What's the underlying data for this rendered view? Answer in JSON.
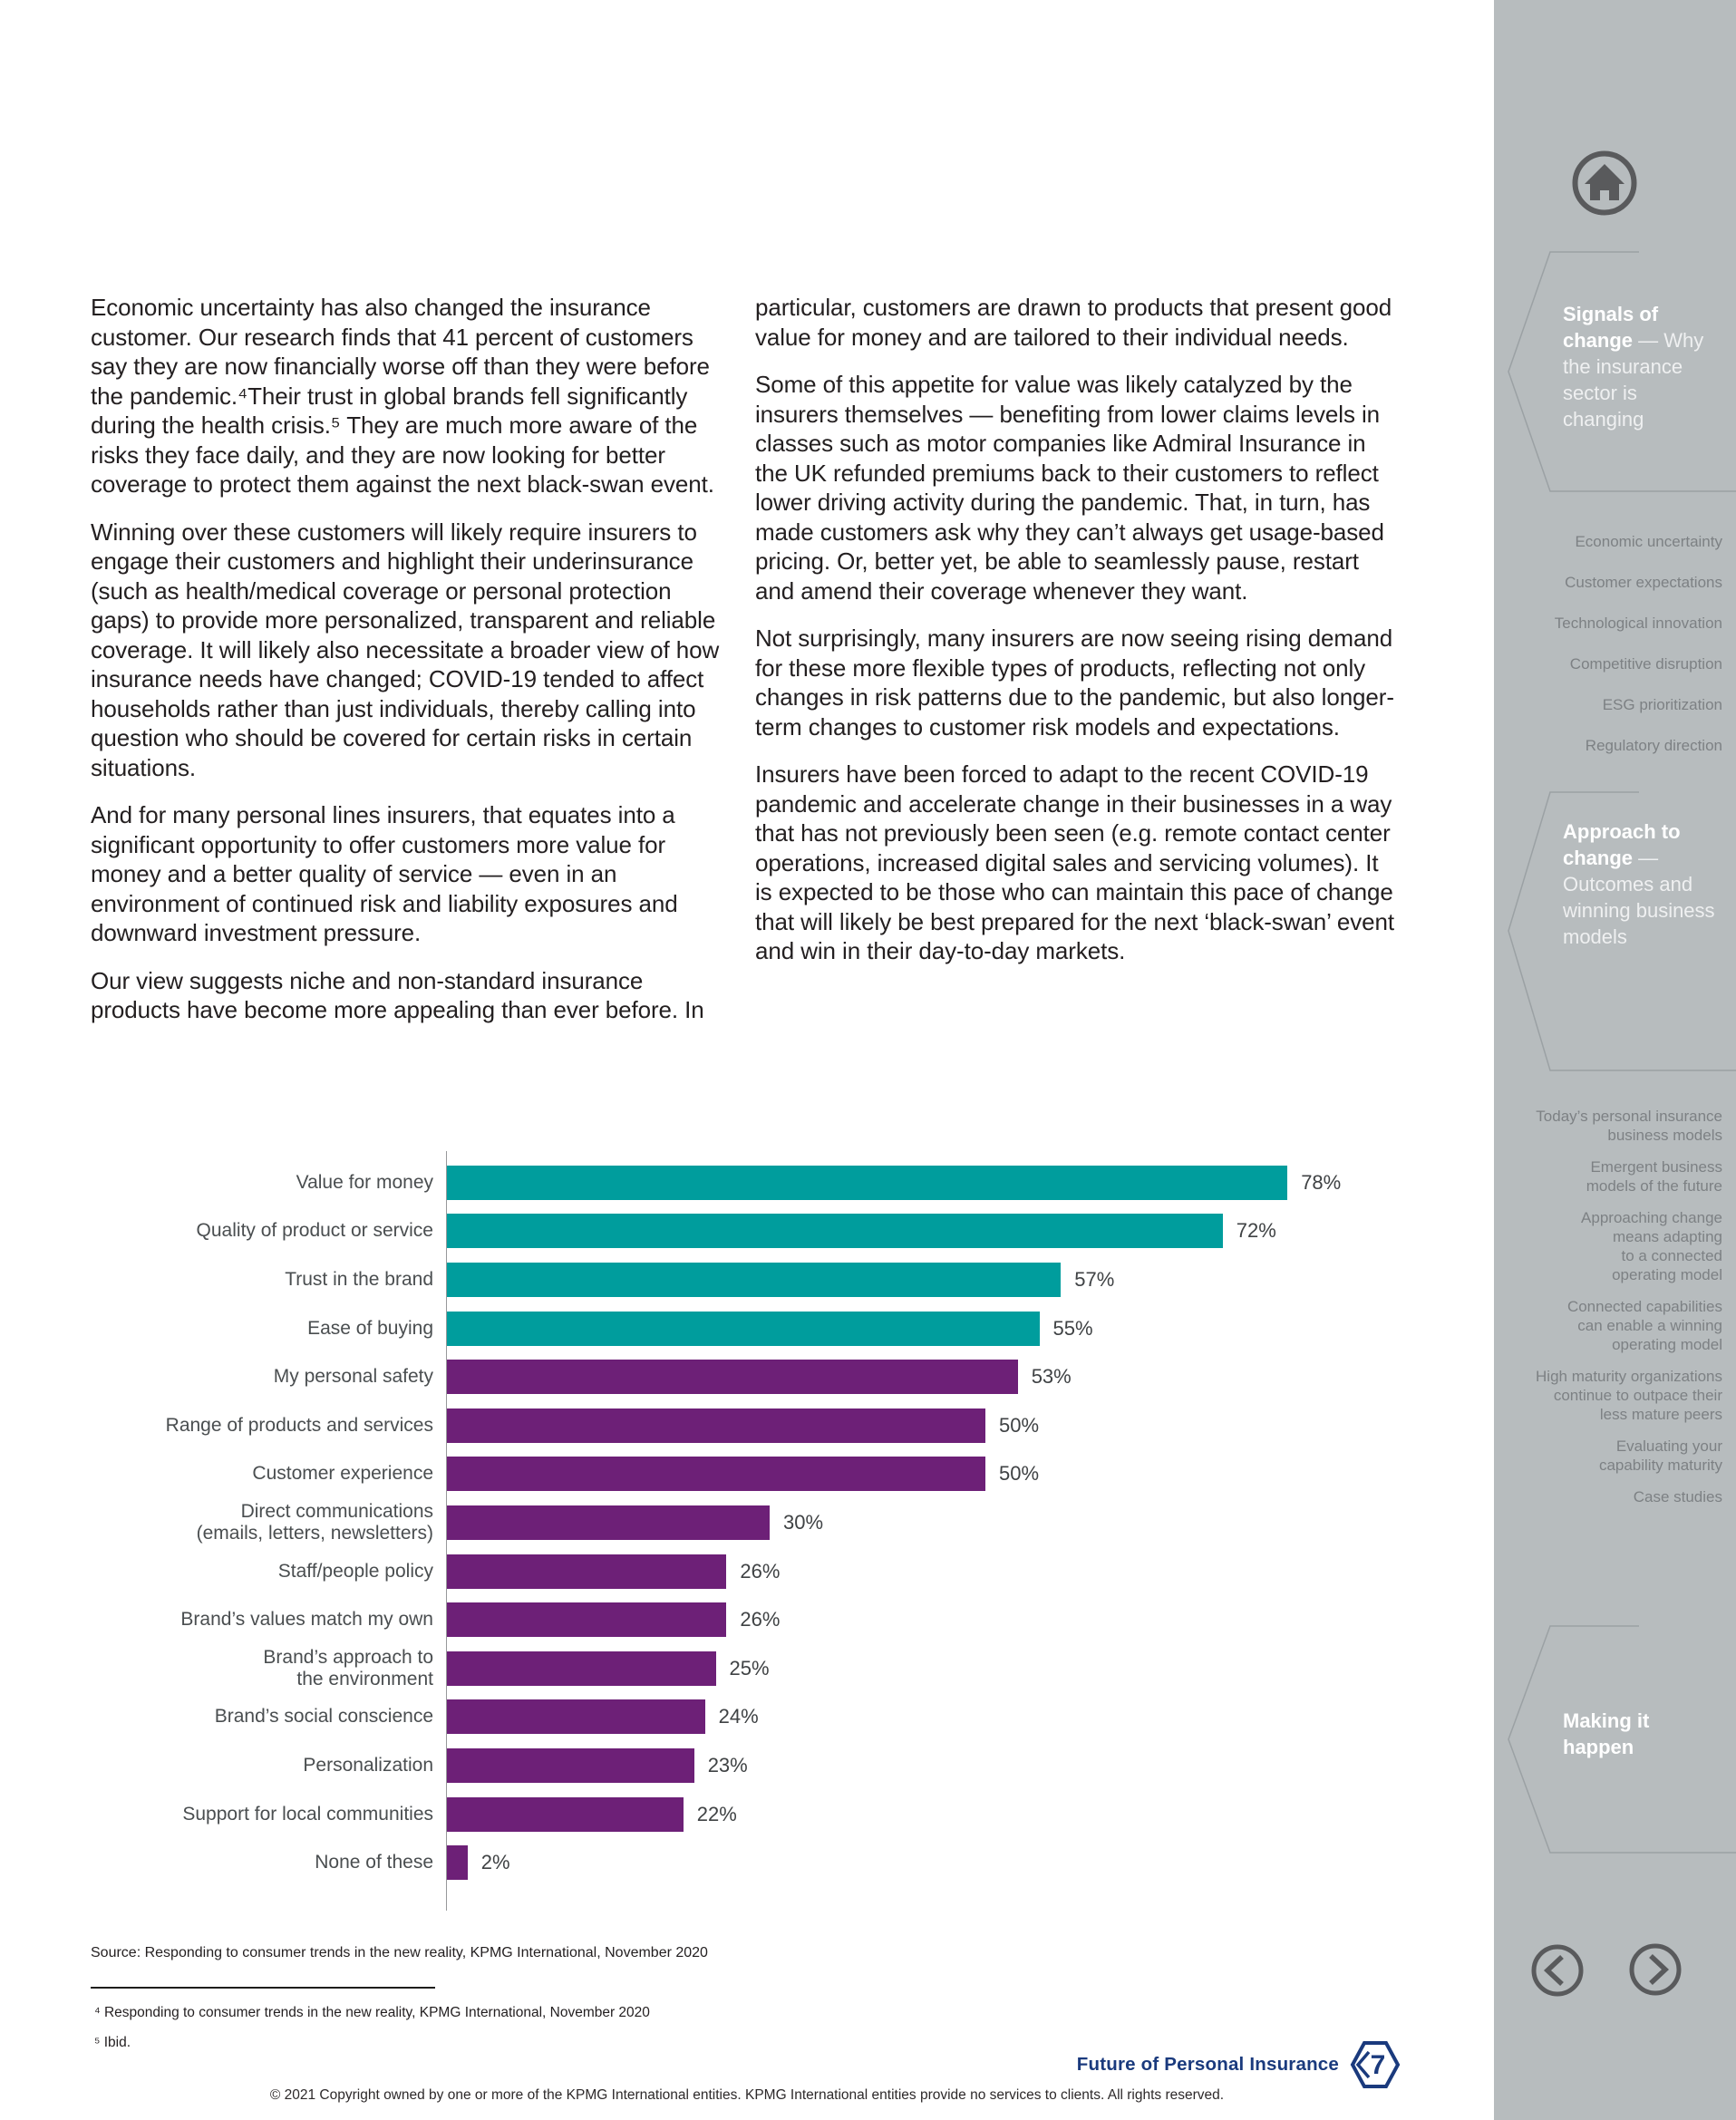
{
  "colors": {
    "teal": "#009d9d",
    "purple": "#6d2077",
    "kpmg_blue": "#1a3a7d",
    "sidebar_gray": "#b7bcbe",
    "icon_gray": "#595a5c"
  },
  "article": {
    "left_column": {
      "paragraphs": [
        "Economic uncertainty has also changed the insurance customer. Our research finds that 41 percent of customers say they are now financially worse off than they were before the pandemic.⁴Their trust in global brands fell significantly during the health crisis.⁵ They are much more aware of the risks they face daily, and they are now looking for better coverage to protect them against the next black-swan event.",
        "Winning over these customers will likely require insurers to engage their customers and highlight their underinsurance (such as health/medical coverage or personal protection gaps) to provide more personalized, transparent and reliable coverage. It will likely also necessitate a broader view of how insurance needs have changed; COVID-19 tended to affect households rather than just individuals, thereby calling into question who should be covered for certain risks in certain situations.",
        "And for many personal lines insurers, that equates into a significant opportunity to offer customers more value for money and a better quality of service — even in an environment of continued risk and liability exposures and downward investment pressure.",
        "Our view suggests niche and non-standard insurance products have become more appealing than ever before. In"
      ]
    },
    "right_column": {
      "paragraphs": [
        "particular, customers are drawn to products that present good value for money and are tailored to their individual needs.",
        "Some of this appetite for value was likely catalyzed by the insurers themselves —  benefiting from lower claims levels in classes such as motor companies like Admiral Insurance in the UK refunded premiums back to their customers to reflect lower driving activity during the pandemic. That, in turn, has made customers ask why they can’t always get usage-based pricing. Or, better yet, be able to seamlessly pause, restart and amend their coverage whenever  they want.",
        "Not surprisingly, many insurers are now seeing rising demand for these more flexible types of products, reflecting not only changes in risk patterns due to the pandemic, but also longer-term changes to customer risk models and expectations.",
        "Insurers have been forced to adapt to the recent COVID-19 pandemic and accelerate change in their businesses in a way that has not previously been seen (e.g. remote contact center operations, increased digital sales and servicing volumes). It is expected to be those who can maintain this pace of change that will likely be best prepared for the next ‘black-swan’ event and win in their day-to-day markets."
      ]
    }
  },
  "chart_data": {
    "type": "bar",
    "orientation": "horizontal",
    "xlim": [
      0,
      100
    ],
    "value_suffix": "%",
    "grid": false,
    "legend": "none",
    "colors": {
      "teal": "#009d9d",
      "purple": "#6d2077"
    },
    "categories": [
      "Value for money",
      "Quality of product or service",
      "Trust in the brand",
      "Ease of buying",
      "My personal safety",
      "Range of products and services",
      "Customer experience",
      "Direct communications (emails, letters, newsletters)",
      "Staff/people policy",
      "Brand’s values match my own",
      "Brand’s approach to the environment",
      "Brand’s social conscience",
      "Personalization",
      "Support for local communities",
      "None of these"
    ],
    "values": [
      78,
      72,
      57,
      55,
      53,
      50,
      50,
      30,
      26,
      26,
      25,
      24,
      23,
      22,
      2
    ],
    "items": [
      {
        "label": "Value for money",
        "value": 78,
        "color": "teal"
      },
      {
        "label": "Quality of product or service",
        "value": 72,
        "color": "teal"
      },
      {
        "label": "Trust in the brand",
        "value": 57,
        "color": "teal"
      },
      {
        "label": "Ease of buying",
        "value": 55,
        "color": "teal"
      },
      {
        "label": "My personal safety",
        "value": 53,
        "color": "purple"
      },
      {
        "label": "Range of products and services",
        "value": 50,
        "color": "purple"
      },
      {
        "label": "Customer experience",
        "value": 50,
        "color": "purple"
      },
      {
        "label": "Direct communications\n(emails, letters, newsletters)",
        "value": 30,
        "color": "purple"
      },
      {
        "label": "Staff/people policy",
        "value": 26,
        "color": "purple"
      },
      {
        "label": "Brand’s values match my own",
        "value": 26,
        "color": "purple"
      },
      {
        "label": "Brand’s approach to\nthe environment",
        "value": 25,
        "color": "purple"
      },
      {
        "label": "Brand’s social conscience",
        "value": 24,
        "color": "purple"
      },
      {
        "label": "Personalization",
        "value": 23,
        "color": "purple"
      },
      {
        "label": "Support for local communities",
        "value": 22,
        "color": "purple"
      },
      {
        "label": "None of these",
        "value": 2,
        "color": "purple"
      }
    ],
    "source": "Source: Responding to consumer trends in the new reality, KPMG International, November 2020"
  },
  "footnotes": [
    "⁴ Responding to consumer trends in the new reality, KPMG International, November 2020",
    "⁵ Ibid."
  ],
  "sidebar": {
    "sections": [
      {
        "title_bold": "Signals of change",
        "title_rest": " — Why the insurance sector is changing",
        "links": [
          "Economic uncertainty",
          "Customer expectations",
          "Technological innovation",
          "Competitive disruption",
          "ESG prioritization",
          "Regulatory direction"
        ]
      },
      {
        "title_bold": "Approach to change",
        "title_rest": " — Outcomes and winning business models",
        "links": [
          "Today’s personal insurance\nbusiness models",
          "Emergent business\nmodels of the future",
          "Approaching change\nmeans adapting\nto a connected\noperating model",
          "Connected capabilities\ncan enable a winning\noperating model",
          "High maturity organizations\ncontinue to outpace their\nless mature peers",
          "Evaluating your\ncapability maturity",
          "Case studies"
        ]
      },
      {
        "title_bold": "Making it happen",
        "title_rest": "",
        "links": []
      }
    ]
  },
  "footer": {
    "report_title": "Future of Personal Insurance",
    "page_number": "7",
    "copyright": "© 2021 Copyright owned by one or more of the KPMG International entities. KPMG International entities provide no services to clients. All rights reserved."
  }
}
